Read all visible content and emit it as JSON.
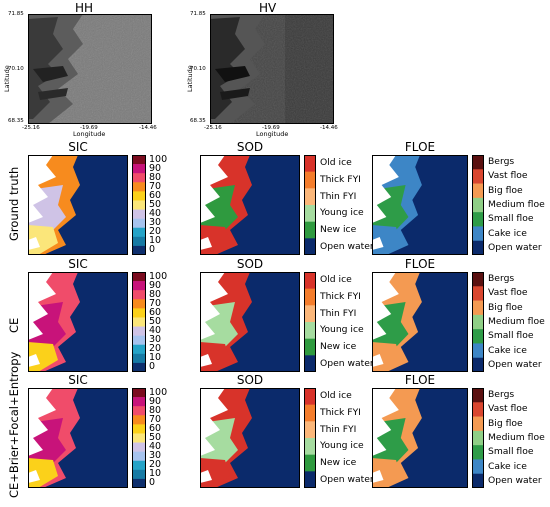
{
  "sar": {
    "hh_title": "HH",
    "hv_title": "HV",
    "ylabel": "Latitude",
    "xlabel": "Longitude",
    "lat_ticks": [
      "71.85",
      "70.10",
      "68.35"
    ],
    "lon_ticks": [
      "-25.16",
      "-19.69",
      "-14.46"
    ]
  },
  "rows": [
    {
      "label": "Ground truth",
      "sic_title": "SIC",
      "sod_title": "SOD",
      "floe_title": "FLOE"
    },
    {
      "label": "CE",
      "sic_title": "SIC",
      "sod_title": "SOD",
      "floe_title": "FLOE"
    },
    {
      "label": "CE+Brier+Focal+Entropy",
      "sic_title": "SIC",
      "sod_title": "SOD",
      "floe_title": "FLOE"
    }
  ],
  "sic_legend": {
    "ticks": [
      "100",
      "90",
      "80",
      "70",
      "60",
      "50",
      "40",
      "30",
      "20",
      "10",
      "0"
    ],
    "colors": [
      "#7b0c1f",
      "#c8137a",
      "#f04c6a",
      "#f78b1e",
      "#fbd11a",
      "#fbe67a",
      "#cfc3e6",
      "#a6c3ee",
      "#25a3c7",
      "#177aa4",
      "#0e2f6d"
    ]
  },
  "sod_legend": {
    "items": [
      "Old ice",
      "Thick FYI",
      "Thin FYI",
      "Young ice",
      "New ice",
      "Open water"
    ],
    "colors": [
      "#d8332a",
      "#f47d2c",
      "#fbb77a",
      "#a6dca0",
      "#2f9a3f",
      "#0b2a6b"
    ]
  },
  "floe_legend": {
    "items": [
      "Bergs",
      "Vast floe",
      "Big floe",
      "Medium floe",
      "Small floe",
      "Cake ice",
      "Open water"
    ],
    "colors": [
      "#5a1010",
      "#d9462f",
      "#f49a52",
      "#8fcf86",
      "#2e9c48",
      "#3d86c6",
      "#0b2a6b"
    ]
  }
}
